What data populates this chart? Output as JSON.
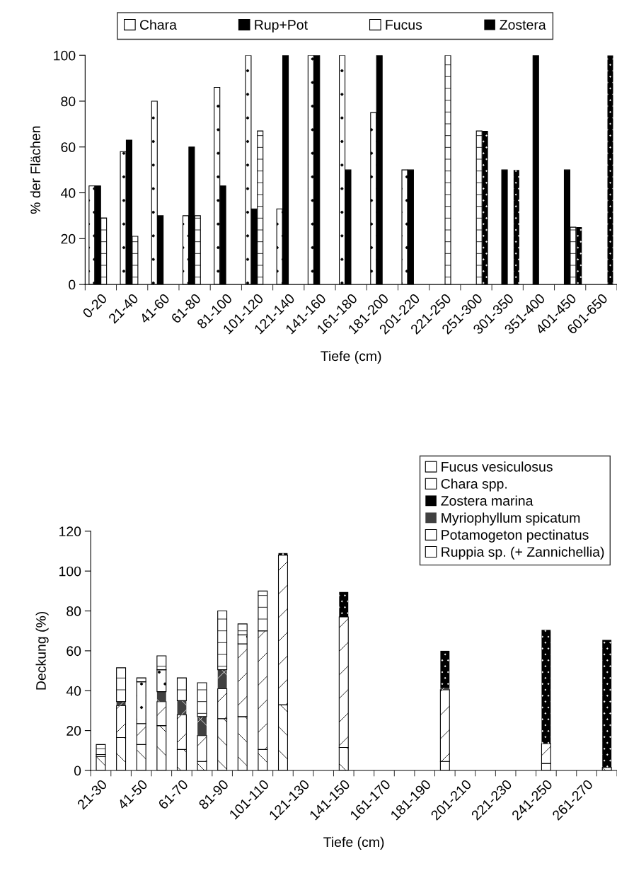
{
  "chart_data": [
    {
      "type": "bar",
      "xlabel": "Tiefe (cm)",
      "ylabel": "% der Flächen",
      "categories": [
        "0-20",
        "21-40",
        "41-60",
        "61-80",
        "81-100",
        "101-120",
        "121-140",
        "141-160",
        "161-180",
        "181-200",
        "201-220",
        "221-250",
        "251-300",
        "301-350",
        "351-400",
        "401-450",
        "601-650"
      ],
      "series": [
        {
          "name": "Chara",
          "color": "#ffffff",
          "values": [
            43,
            58,
            80,
            30,
            86,
            100,
            33,
            100,
            100,
            75,
            50,
            null,
            null,
            null,
            null,
            null,
            null
          ]
        },
        {
          "name": "Rup+Pot",
          "color": "#000000",
          "values": [
            43,
            63,
            30,
            60,
            43,
            33,
            100,
            100,
            50,
            100,
            50,
            null,
            null,
            50,
            100,
            50,
            null
          ]
        },
        {
          "name": "Fucus",
          "color": "#ffffff",
          "values": [
            29,
            21,
            null,
            30,
            null,
            67,
            null,
            null,
            null,
            null,
            null,
            100,
            67,
            null,
            null,
            25,
            null
          ]
        },
        {
          "name": "Zostera",
          "color": "#000000",
          "values": [
            null,
            null,
            null,
            null,
            null,
            null,
            null,
            null,
            null,
            null,
            null,
            null,
            67,
            50,
            null,
            25,
            100
          ]
        }
      ],
      "ylim": [
        0,
        100
      ],
      "yticks": [
        0,
        20,
        40,
        60,
        80,
        100
      ],
      "legend": "top",
      "grid": false
    },
    {
      "type": "bar",
      "stacked": true,
      "xlabel": "Tiefe (cm)",
      "ylabel": "Deckung (%)",
      "categories": [
        "21-30",
        null,
        "41-50",
        null,
        "61-70",
        null,
        "81-90",
        null,
        "101-110",
        null,
        "121-130",
        null,
        "141-150",
        null,
        "161-170",
        null,
        "181-190",
        null,
        "201-210",
        null,
        "221-230",
        null,
        "241-250",
        null,
        "261-270",
        null
      ],
      "series": [
        {
          "name": "Ruppia sp. (+ Zannichellia)",
          "color": "#ffffff",
          "values": [
            7,
            16.5,
            13,
            22.5,
            10.5,
            4.5,
            26,
            27,
            10.5,
            33,
            null,
            null,
            11.5,
            null,
            null,
            null,
            null,
            4.5,
            null,
            null,
            null,
            null,
            3.5,
            null,
            null,
            1.5
          ]
        },
        {
          "name": "Potamogeton pectinatus",
          "color": "#ffffff",
          "values": [
            1,
            16,
            10.5,
            12,
            17.5,
            13,
            15,
            36.5,
            59.5,
            75,
            null,
            null,
            65.5,
            null,
            null,
            null,
            null,
            36,
            null,
            null,
            null,
            null,
            10,
            null,
            null,
            null
          ]
        },
        {
          "name": "Myriophyllum spicatum",
          "color": "#404040",
          "values": [
            null,
            2,
            null,
            5,
            7,
            9.5,
            9.5,
            null,
            null,
            null,
            null,
            null,
            null,
            null,
            null,
            null,
            null,
            1,
            null,
            null,
            null,
            null,
            null,
            null,
            null,
            null
          ]
        },
        {
          "name": "Zostera marina",
          "color": "#000000",
          "values": [
            null,
            null,
            null,
            null,
            null,
            null,
            null,
            null,
            null,
            1,
            null,
            null,
            12.5,
            null,
            null,
            null,
            null,
            18.5,
            null,
            null,
            null,
            null,
            57,
            null,
            null,
            64
          ]
        },
        {
          "name": "Chara spp.",
          "color": "#ffffff",
          "values": [
            null,
            null,
            21,
            11,
            null,
            null,
            null,
            4.5,
            null,
            null,
            null,
            null,
            null,
            null,
            null,
            null,
            null,
            null,
            null,
            null,
            null,
            null,
            null,
            null,
            null,
            null
          ]
        },
        {
          "name": "Fucus vesiculosus",
          "color": "#ffffff",
          "values": [
            5,
            17,
            2,
            7,
            11.5,
            17,
            29.5,
            5.5,
            20,
            null,
            null,
            null,
            null,
            null,
            null,
            null,
            null,
            null,
            null,
            null,
            null,
            null,
            null,
            null,
            null,
            null
          ]
        }
      ],
      "ylim": [
        0,
        120
      ],
      "yticks": [
        0,
        20,
        40,
        60,
        80,
        100,
        120
      ],
      "legend": "top right",
      "grid": false
    }
  ]
}
